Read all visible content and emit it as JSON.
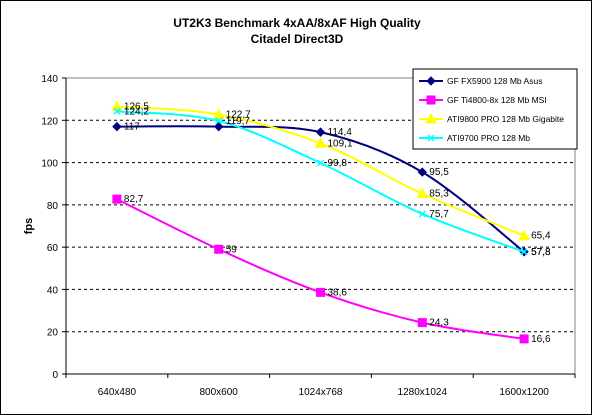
{
  "chart_data": {
    "type": "line",
    "title": "UT2K3 Benchmark 4xAA/8xAF High Quality",
    "subtitle": "Citadel Direct3D",
    "xlabel": "",
    "ylabel": "fps",
    "ylim": [
      0,
      140
    ],
    "yticks": [
      0,
      20,
      40,
      60,
      80,
      100,
      120,
      140
    ],
    "categories": [
      "640x480",
      "800x600",
      "1024x768",
      "1280x1024",
      "1600x1200"
    ],
    "grid": "horizontal-dashed",
    "legend_position": "top-right",
    "series": [
      {
        "name": "GF FX5900 128 Mb Asus",
        "values": [
          117,
          117,
          114.4,
          95.5,
          57.8
        ],
        "labels": [
          "117",
          "",
          "114,4",
          "95,5",
          "57,8"
        ],
        "color": "#000080",
        "marker": "diamond"
      },
      {
        "name": "GF Ti4800-8x 128 Mb MSI",
        "values": [
          82.7,
          59,
          38.6,
          24.3,
          16.6
        ],
        "labels": [
          "82,7",
          "59",
          "38,6",
          "24,3",
          "16,6"
        ],
        "color": "#ff00ff",
        "marker": "square"
      },
      {
        "name": "ATI9800 PRO 128 Mb Gigabite",
        "values": [
          126.5,
          122.7,
          109.1,
          85.3,
          65.4
        ],
        "labels": [
          "126,5",
          "122,7",
          "109,1",
          "85,3",
          "65,4"
        ],
        "color": "#ffff00",
        "marker": "triangle"
      },
      {
        "name": "ATI9700 PRO 128 Mb",
        "values": [
          124.2,
          119.7,
          99.8,
          75.7,
          57.8
        ],
        "labels": [
          "124,2",
          "119,7",
          "99,8",
          "75,7",
          "57,8"
        ],
        "color": "#00ffff",
        "marker": "x"
      }
    ]
  }
}
